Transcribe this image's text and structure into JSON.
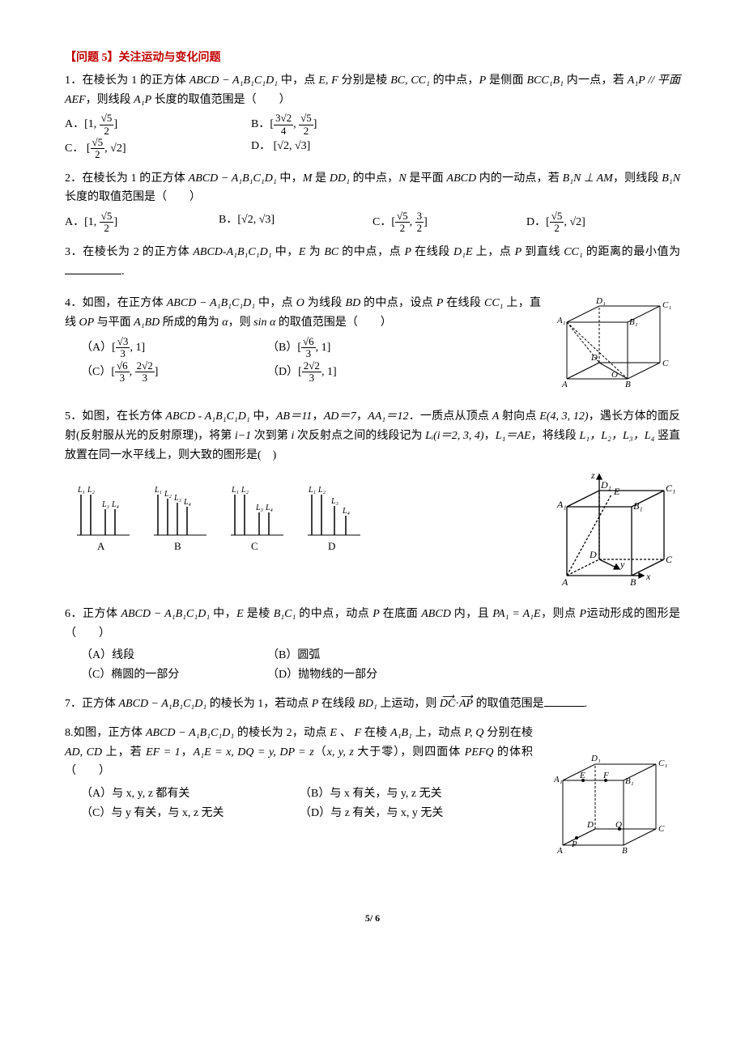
{
  "section_title": "【问题 5】关注运动与变化问题",
  "q1": {
    "text_a": "1．在棱长为 1 的正方体 ",
    "cube": "ABCD − A₁B₁C₁D₁",
    "text_b": " 中，点 ",
    "ef": "E, F",
    "text_c": " 分别是棱 ",
    "bc": "BC, CC₁",
    "text_d": " 的中点，",
    "p": "P",
    "text_e": " 是侧面 ",
    "face": "BCC₁B₁",
    "text_f": " 内一点，若 ",
    "cond": "A₁P // 平面 AEF",
    "text_g": "，则线段 ",
    "seg": "A₁P",
    "text_h": " 长度的取值范围是（　　）",
    "optA_l": "A．",
    "optB_l": "B．",
    "optC_l": "C．",
    "optD_l": "D．",
    "optA_lo": "1",
    "optA_hi_n": "√5",
    "optA_hi_d": "2",
    "optB_lo_n": "3√2",
    "optB_lo_d": "4",
    "optB_hi_n": "√5",
    "optB_hi_d": "2",
    "optC_lo_n": "√5",
    "optC_lo_d": "2",
    "optC_hi": "√2",
    "optD_lo": "√2",
    "optD_hi": "√3"
  },
  "q2": {
    "text_a": "2．在棱长为 1 的正方体 ",
    "cube": "ABCD − A₁B₁C₁D₁",
    "text_b": " 中，",
    "m": "M",
    "text_c": " 是 ",
    "dd1": "DD₁",
    "text_d": " 的中点，",
    "n": "N",
    "text_e": " 是平面 ",
    "abcd": "ABCD",
    "text_f": " 内的一动点，若 ",
    "cond": "B₁N ⊥ AM",
    "text_g": "，则线段 ",
    "seg": "B₁N",
    "text_h": " 长度的取值范围是（　　）",
    "optA_l": "A．",
    "optB_l": "B．",
    "optC_l": "C．",
    "optD_l": "D．",
    "optA_lo": "1",
    "optA_hi_n": "√5",
    "optA_hi_d": "2",
    "optB_lo": "√2",
    "optB_hi": "√3",
    "optC_lo_n": "√5",
    "optC_lo_d": "2",
    "optC_hi_n": "3",
    "optC_hi_d": "2",
    "optD_lo_n": "√5",
    "optD_lo_d": "2",
    "optD_hi": "√2"
  },
  "q3": {
    "text_a": "3．在棱长为 2 的正方体 ",
    "cube": "ABCD-A₁B₁C₁D₁",
    "text_b": " 中，",
    "e": "E",
    "text_c": " 为 ",
    "bc": "BC",
    "text_d": " 的中点，点 ",
    "p": "P",
    "text_e": " 在线段 ",
    "d1e": "D₁E",
    "text_f": " 上，点 ",
    "p2": "P",
    "text_g": " 到直线 ",
    "cc1": "CC₁",
    "text_h": " 的距离的最小值为",
    "period": "."
  },
  "q4": {
    "text_a": "4．如图，在正方体 ",
    "cube": "ABCD − A₁B₁C₁D₁",
    "text_b": " 中，点 ",
    "o": "O",
    "text_c": " 为线段 ",
    "bd": "BD",
    "text_d": " 的中点，设点 ",
    "p": "P",
    "text_e": " 在线段 ",
    "cc1": "CC₁",
    "text_f": " 上，直线 ",
    "op": "OP",
    "text_g": " 与平面 ",
    "a1bd": "A₁BD",
    "text_h": " 所成的角为 ",
    "alpha": "α",
    "text_i": "，则 ",
    "sina": "sin α",
    "text_j": " 的取值范围是（　　）",
    "optA_l": "（A）",
    "optB_l": "（B）",
    "optC_l": "（C）",
    "optD_l": "（D）",
    "optA_lo_n": "√3",
    "optA_lo_d": "3",
    "optA_hi": "1",
    "optB_lo_n": "√6",
    "optB_lo_d": "3",
    "optB_hi": "1",
    "optC_lo_n": "√6",
    "optC_lo_d": "3",
    "optC_hi_n": "2√2",
    "optC_hi_d": "3",
    "optD_lo_n": "2√2",
    "optD_lo_d": "3",
    "optD_hi": "1",
    "fig": {
      "A": "A",
      "B": "B",
      "C": "C",
      "D": "D",
      "A1": "A₁",
      "B1": "B₁",
      "C1": "C₁",
      "D1": "D₁",
      "O": "O"
    }
  },
  "q5": {
    "text_a": "5．如图，在长方体 ",
    "cube": "ABCD - A₁B₁C₁D₁",
    "text_b": " 中，",
    "ab": "AB＝11",
    "comma1": "，",
    "ad": "AD＝7",
    "comma2": "，",
    "aa1": "AA₁＝12",
    "text_c": "．一质点从顶点 ",
    "a": "A",
    "text_d": " 射向点 ",
    "e": "E(4, 3, 12)",
    "text_e": "，遇长方体的面反射(反射服从光的反射原理)，将第 ",
    "im1": "i−1",
    "text_f": " 次到第 ",
    "i": "i",
    "text_g": " 次反射点之间的线段记为 ",
    "li": "Lᵢ(i＝2, 3, 4)",
    "comma3": "，",
    "l1": "L₁＝AE",
    "text_h": "，将线段 ",
    "ls": "L₁，L₂，L₃，L₄",
    "text_i": " 竖直放置在同一水平线上，则大致的图形是(　)",
    "optA": "A",
    "optB": "B",
    "optC": "C",
    "optD": "D",
    "bars": {
      "A": {
        "labels": [
          "L₁",
          "L₂",
          "L₃",
          "L₄"
        ],
        "heights": [
          50,
          50,
          32,
          32
        ]
      },
      "B": {
        "labels": [
          "L₁",
          "L₂",
          "L₃",
          "L₄"
        ],
        "heights": [
          50,
          45,
          40,
          35
        ]
      },
      "C": {
        "labels": [
          "L₁",
          "L₂",
          "L₃",
          "L₄"
        ],
        "heights": [
          50,
          50,
          28,
          28
        ]
      },
      "D": {
        "labels": [
          "L₁",
          "L₂",
          "L₃",
          "L₄"
        ],
        "heights": [
          50,
          50,
          36,
          24
        ]
      }
    },
    "fig": {
      "A": "A",
      "B": "B",
      "C": "C",
      "D": "D",
      "A1": "A₁",
      "B1": "B₁",
      "C1": "C₁",
      "D1": "D₁",
      "E": "E",
      "x": "x",
      "y": "y",
      "z": "z"
    }
  },
  "q6": {
    "text_a": "6．正方体 ",
    "cube": "ABCD − A₁B₁C₁D₁",
    "text_b": " 中，",
    "e": "E",
    "text_c": " 是棱 ",
    "b1c1": "B₁C₁",
    "text_d": " 的中点，动点 ",
    "p": "P",
    "text_e": " 在底面 ",
    "abcd": "ABCD",
    "text_f": " 内，且 ",
    "cond": "PA₁ = A₁E",
    "text_g": "，则点 ",
    "p2": "P",
    "text_h": "运动形成的图形是（　　）",
    "optA": "（A）线段",
    "optB": "（B）圆弧",
    "optC": "（C）椭圆的一部分",
    "optD": "（D）抛物线的一部分"
  },
  "q7": {
    "text_a": "7．正方体 ",
    "cube": "ABCD − A₁B₁C₁D₁",
    "text_b": " 的棱长为 1，若动点 ",
    "p": "P",
    "text_c": " 在线段 ",
    "bd1": "BD₁",
    "text_d": " 上运动，则 ",
    "dc": "DC",
    "dot": "·",
    "ap": "AP",
    "text_e": " 的取值范围是",
    "period": "."
  },
  "q8": {
    "text_a": "8.如图，正方体 ",
    "cube": "ABCD − A₁B₁C₁D₁",
    "text_b": " 的棱长为 2，动点 ",
    "ef": "E 、 F",
    "text_c": " 在棱 ",
    "a1b1": "A₁B₁",
    "text_d": " 上，动点 ",
    "pq": "P, Q",
    "text_e": " 分别在棱 ",
    "adcd": "AD, CD",
    "text_f": " 上，若 ",
    "ef1": "EF = 1",
    "comma1": "，",
    "ae": "A₁E = x, DQ = y, DP = z",
    "text_g": "（",
    "xyz": "x, y, z",
    "text_h": " 大于零），则四面体 ",
    "pefq": "PEFQ",
    "text_i": " 的体积（　　）",
    "optA": "（A）与 x, y, z 都有关",
    "optB": "（B）与 x 有关，与 y, z 无关",
    "optC": "（C）与 y 有关，与 x, z 无关",
    "optD": "（D）与 z 有关，与 x, y 无关",
    "fig": {
      "A": "A",
      "B": "B",
      "C": "C",
      "D": "D",
      "A1": "A₁",
      "B1": "B₁",
      "C1": "C₁",
      "D1": "D₁",
      "E": "E",
      "F": "F",
      "P": "P",
      "Q": "Q"
    }
  },
  "page_num": "5/ 6"
}
